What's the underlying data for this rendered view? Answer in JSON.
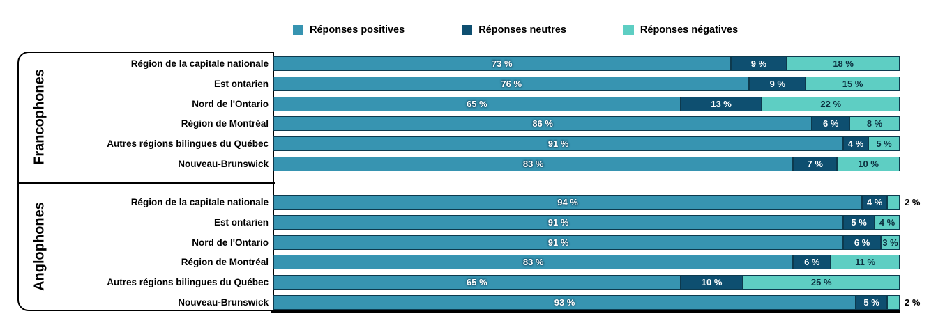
{
  "chart_data": {
    "type": "bar",
    "orientation": "horizontal",
    "stacked": true,
    "value_unit": "%",
    "xlim": [
      0,
      100
    ],
    "grid": false,
    "legend_position": "top",
    "label_format": "{v} %",
    "series": [
      {
        "name": "Réponses positives",
        "color": "#3794b1"
      },
      {
        "name": "Réponses neutres",
        "color": "#0e4f70"
      },
      {
        "name": "Réponses négatives",
        "color": "#5ecec3"
      }
    ],
    "groups": [
      {
        "name": "Francophones",
        "categories": [
          "Région de la capitale nationale",
          "Est ontarien",
          "Nord de l'Ontario",
          "Région de Montréal",
          "Autres régions bilingues du Québec",
          "Nouveau-Brunswick"
        ],
        "values": [
          [
            73,
            9,
            18
          ],
          [
            76,
            9,
            15
          ],
          [
            65,
            13,
            22
          ],
          [
            86,
            6,
            8
          ],
          [
            91,
            4,
            5
          ],
          [
            83,
            7,
            10
          ]
        ]
      },
      {
        "name": "Anglophones",
        "categories": [
          "Région de la capitale nationale",
          "Est ontarien",
          "Nord de l'Ontario",
          "Région de Montréal",
          "Autres régions bilingues du Québec",
          "Nouveau-Brunswick"
        ],
        "values": [
          [
            94,
            4,
            2
          ],
          [
            91,
            5,
            4
          ],
          [
            91,
            6,
            3
          ],
          [
            83,
            6,
            11
          ],
          [
            65,
            10,
            25
          ],
          [
            93,
            5,
            2
          ]
        ]
      }
    ]
  },
  "layout_colors": {
    "segment_border": "#0d3a4e",
    "negative_text": "#0c2f3f",
    "frame": "#000000"
  }
}
